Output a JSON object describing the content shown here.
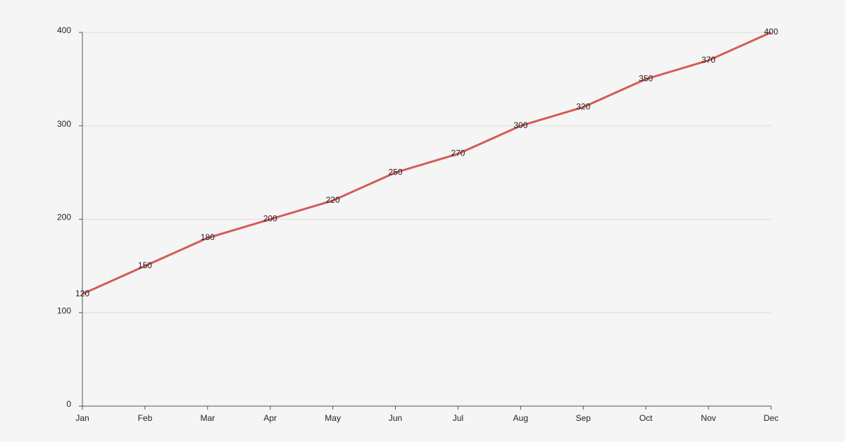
{
  "chart_data": {
    "type": "line",
    "categories": [
      "Jan",
      "Feb",
      "Mar",
      "Apr",
      "May",
      "Jun",
      "Jul",
      "Aug",
      "Sep",
      "Oct",
      "Nov",
      "Dec"
    ],
    "values": [
      120,
      150,
      180,
      200,
      220,
      250,
      270,
      300,
      320,
      350,
      370,
      400
    ],
    "color": "#d65a57",
    "ylim": [
      0,
      400
    ],
    "yticks": [
      0,
      100,
      200,
      300,
      400
    ],
    "grid": true
  }
}
